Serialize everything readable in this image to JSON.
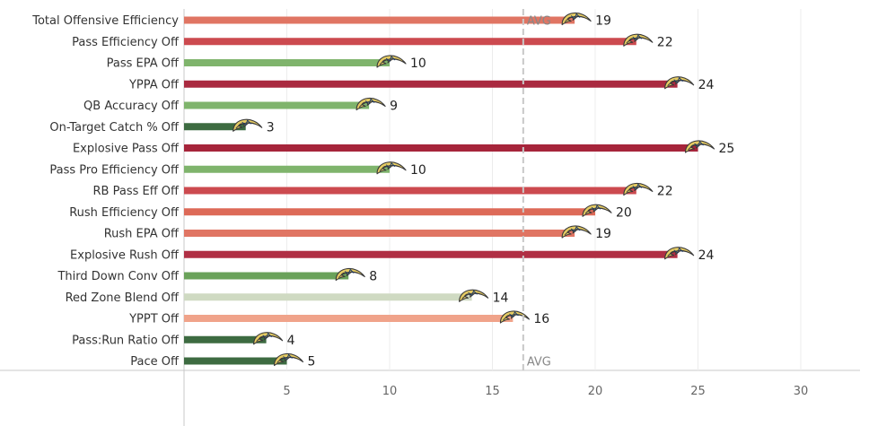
{
  "chart_data": {
    "type": "bar",
    "orientation": "horizontal",
    "title": "",
    "xlabel": "",
    "ylabel": "",
    "xlim": [
      0,
      32
    ],
    "xticks": [
      5,
      10,
      15,
      20,
      25,
      30
    ],
    "grid": true,
    "legend": "none",
    "reference_line": {
      "label": "AVG",
      "value": 16.5
    },
    "marker_icon": "chargers-bolt-helmet-icon",
    "categories": [
      "Total Offensive Efficiency",
      "Pass Efficiency Off",
      "Pass EPA Off",
      "YPPA Off",
      "QB Accuracy Off",
      "On-Target Catch % Off",
      "Explosive Pass Off",
      "Pass Pro Efficiency Off",
      "RB Pass Eff Off",
      "Rush Efficiency Off",
      "Rush EPA Off",
      "Explosive Rush Off",
      "Third Down Conv Off",
      "Red Zone Blend Off",
      "YPPT Off",
      "Pass:Run Ratio Off",
      "Pace Off"
    ],
    "values": [
      19,
      22,
      10,
      24,
      9,
      3,
      25,
      10,
      22,
      20,
      19,
      24,
      8,
      14,
      16,
      4,
      5
    ],
    "colors": [
      "#e07563",
      "#cc4a4f",
      "#7fb46c",
      "#aa2a40",
      "#7fb46c",
      "#3d6b41",
      "#a6253b",
      "#7fb46c",
      "#cc4a4f",
      "#dd6a58",
      "#e07563",
      "#b02f44",
      "#6aa25a",
      "#cfdac2",
      "#f0a38a",
      "#3d6b41",
      "#3d6b41"
    ]
  }
}
